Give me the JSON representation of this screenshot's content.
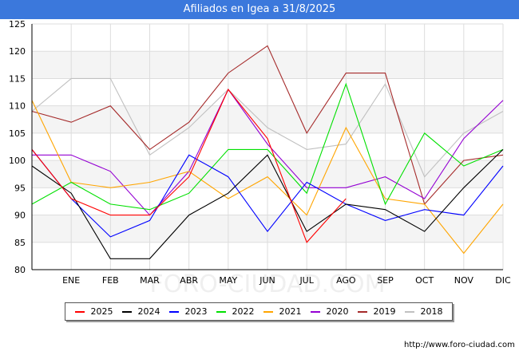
{
  "title": "Afiliados en Igea a 31/8/2025",
  "source": "http://www.foro-ciudad.com",
  "watermark": "FORO-CIUDAD.COM",
  "chart_data": {
    "type": "line",
    "title": "Afiliados en Igea a 31/8/2025",
    "x_positions": [
      "",
      "ENE",
      "FEB",
      "MAR",
      "ABR",
      "MAY",
      "JUN",
      "JUL",
      "AGO",
      "SEP",
      "OCT",
      "NOV",
      "DIC"
    ],
    "xlabel": "",
    "ylabel": "",
    "ylim": [
      80,
      125
    ],
    "yticks": [
      80,
      85,
      90,
      95,
      100,
      105,
      110,
      115,
      120,
      125
    ],
    "grid": true,
    "legend_position": "bottom",
    "series": [
      {
        "name": "2018",
        "color": "#c0c0c0",
        "values": [
          109,
          115,
          115,
          101,
          106,
          113,
          106,
          102,
          103,
          114,
          97,
          105,
          109
        ]
      },
      {
        "name": "2019",
        "color": "#a52a2a",
        "values": [
          109,
          107,
          110,
          102,
          107,
          116,
          121,
          105,
          116,
          116,
          92,
          100,
          101
        ]
      },
      {
        "name": "2020",
        "color": "#9400d3",
        "values": [
          101,
          101,
          98,
          90,
          98,
          113,
          103,
          95,
          95,
          97,
          93,
          104,
          111
        ]
      },
      {
        "name": "2021",
        "color": "#ffa500",
        "values": [
          111,
          96,
          95,
          96,
          98,
          93,
          97,
          90,
          106,
          93,
          92,
          83,
          92
        ]
      },
      {
        "name": "2022",
        "color": "#00e000",
        "values": [
          92,
          96,
          92,
          91,
          94,
          102,
          102,
          94,
          114,
          92,
          105,
          99,
          102
        ]
      },
      {
        "name": "2023",
        "color": "#0000ff",
        "values": [
          102,
          93,
          86,
          89,
          101,
          97,
          87,
          96,
          92,
          89,
          91,
          90,
          99
        ]
      },
      {
        "name": "2024",
        "color": "#000000",
        "values": [
          99,
          94,
          82,
          82,
          90,
          94,
          101,
          87,
          92,
          91,
          87,
          95,
          102
        ]
      },
      {
        "name": "2025",
        "color": "#ff0000",
        "values": [
          102,
          93,
          90,
          90,
          97,
          113,
          104,
          85,
          93
        ]
      }
    ],
    "legend_order": [
      "2025",
      "2024",
      "2023",
      "2022",
      "2021",
      "2020",
      "2019",
      "2018"
    ]
  }
}
